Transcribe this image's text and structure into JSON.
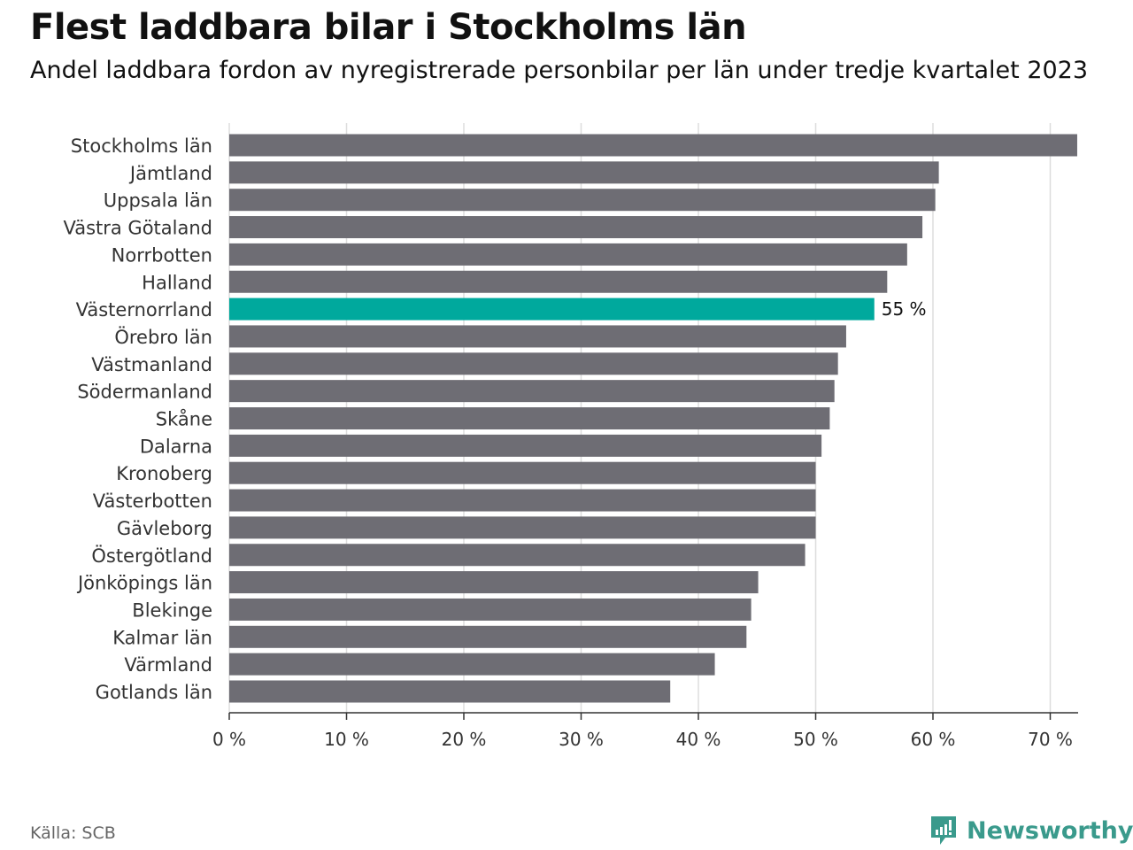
{
  "chart_data": {
    "type": "bar",
    "orientation": "horizontal",
    "title": "Flest laddbara bilar i Stockholms län",
    "subtitle": "Andel laddbara fordon av nyregistrerade personbilar per län under tredje kvartalet 2023",
    "categories": [
      "Stockholms län",
      "Jämtland",
      "Uppsala län",
      "Västra Götaland",
      "Norrbotten",
      "Halland",
      "Västernorrland",
      "Örebro län",
      "Västmanland",
      "Södermanland",
      "Skåne",
      "Dalarna",
      "Kronoberg",
      "Västerbotten",
      "Gävleborg",
      "Östergötland",
      "Jönköpings län",
      "Blekinge",
      "Kalmar län",
      "Värmland",
      "Gotlands län"
    ],
    "values": [
      72.3,
      60.5,
      60.2,
      59.1,
      57.8,
      56.1,
      55.0,
      52.6,
      51.9,
      51.6,
      51.2,
      50.5,
      50.0,
      50.0,
      50.0,
      49.1,
      45.1,
      44.5,
      44.1,
      41.4,
      37.6
    ],
    "highlight": "Västernorrland",
    "highlight_label": "55 %",
    "xlim": [
      0,
      72.3
    ],
    "xticks": [
      0,
      10,
      20,
      30,
      40,
      50,
      60,
      70
    ],
    "xtick_labels": [
      "0 %",
      "10 %",
      "20 %",
      "30 %",
      "40 %",
      "50 %",
      "60 %",
      "70 %"
    ],
    "grid": true,
    "colors": {
      "bar": "#6e6d74",
      "highlight": "#00a99d",
      "grid": "#dddddd"
    }
  },
  "source": "Källa: SCB",
  "brand": "Newsworthy"
}
